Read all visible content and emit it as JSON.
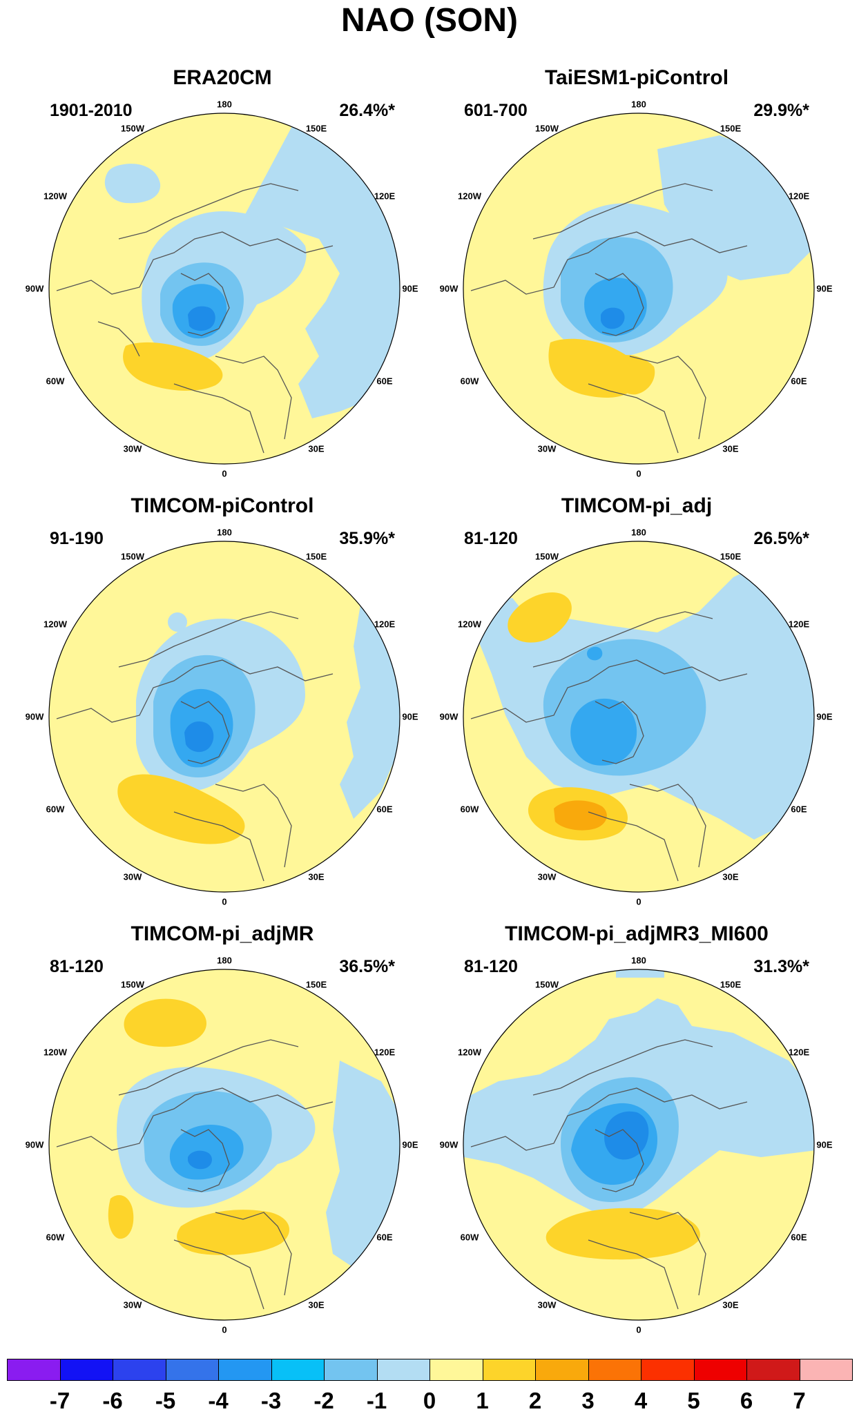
{
  "title": "NAO (SON)",
  "lon_labels": [
    "180",
    "150E",
    "120E",
    "90E",
    "60E",
    "30E",
    "0",
    "30W",
    "60W",
    "90W",
    "120W",
    "150W"
  ],
  "colors": {
    "ocean_bg": "#fff799",
    "neg1": "#b3ddf3",
    "neg2": "#73c4f0",
    "neg3": "#34a8f0",
    "neg4": "#1e8ce8",
    "pos1": "#fdd42a",
    "pos2": "#f9a90c",
    "coast": "#555555"
  },
  "panels": [
    {
      "title": "ERA20CM",
      "period": "1901-2010",
      "variance": "26.4%*"
    },
    {
      "title": "TaiESM1-piControl",
      "period": "601-700",
      "variance": "29.9%*"
    },
    {
      "title": "TIMCOM-piControl",
      "period": "91-190",
      "variance": "35.9%*"
    },
    {
      "title": "TIMCOM-pi_adj",
      "period": "81-120",
      "variance": "26.5%*"
    },
    {
      "title": "TIMCOM-pi_adjMR",
      "period": "81-120",
      "variance": "36.5%*"
    },
    {
      "title": "TIMCOM-pi_adjMR3_MI600",
      "period": "81-120",
      "variance": "31.3%*"
    }
  ],
  "colorbar": {
    "ticks": [
      "-7",
      "-6",
      "-5",
      "-4",
      "-3",
      "-2",
      "-1",
      "0",
      "1",
      "2",
      "3",
      "4",
      "5",
      "6",
      "7"
    ],
    "colors": [
      "#8a1cf0",
      "#1212f5",
      "#2c42ee",
      "#3473ea",
      "#2397f2",
      "#08c0f7",
      "#73c4f0",
      "#b3ddf3",
      "#fff799",
      "#fdd42a",
      "#f9a90c",
      "#fb7306",
      "#fc3000",
      "#ee0000",
      "#d01919",
      "#fbb4b4"
    ]
  }
}
